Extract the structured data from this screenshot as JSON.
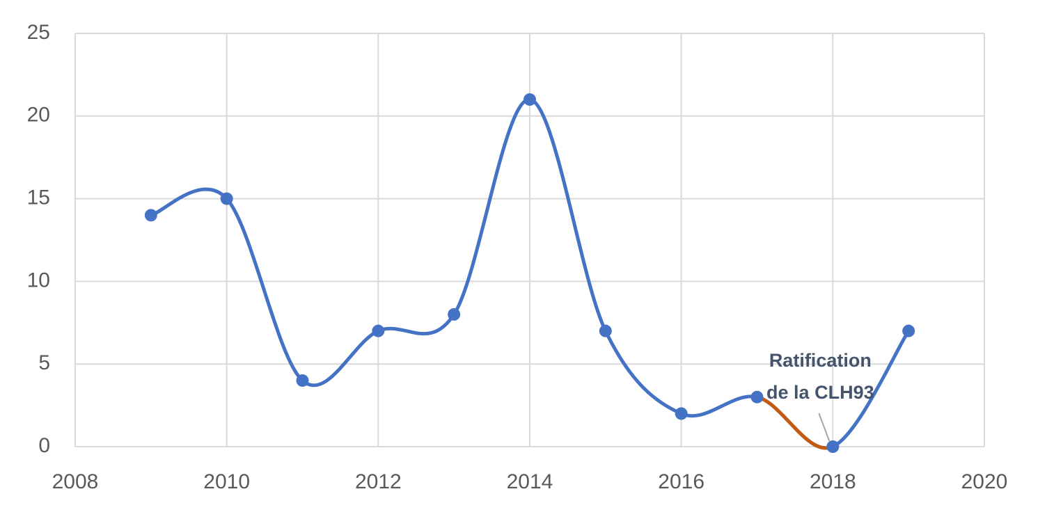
{
  "chart_data": {
    "type": "line",
    "x": [
      2009,
      2010,
      2011,
      2012,
      2013,
      2014,
      2015,
      2016,
      2017,
      2018,
      2019
    ],
    "series": [
      {
        "color": "#4472c4",
        "values": [
          14,
          15,
          4,
          7,
          8,
          21,
          7,
          2,
          3,
          0,
          7
        ],
        "highlight": {
          "from_index": 8,
          "to_index": 9,
          "color": "#c55a11"
        }
      }
    ],
    "xlim": [
      2008,
      2020
    ],
    "xticks": [
      2008,
      2010,
      2012,
      2014,
      2016,
      2018,
      2020
    ],
    "ylim": [
      0,
      25
    ],
    "yticks": [
      0,
      5,
      10,
      15,
      20,
      25
    ],
    "grid": true,
    "smooth": true,
    "annotation": {
      "lines": [
        "Ratification",
        "de la CLH93"
      ],
      "point_index": 9
    }
  }
}
